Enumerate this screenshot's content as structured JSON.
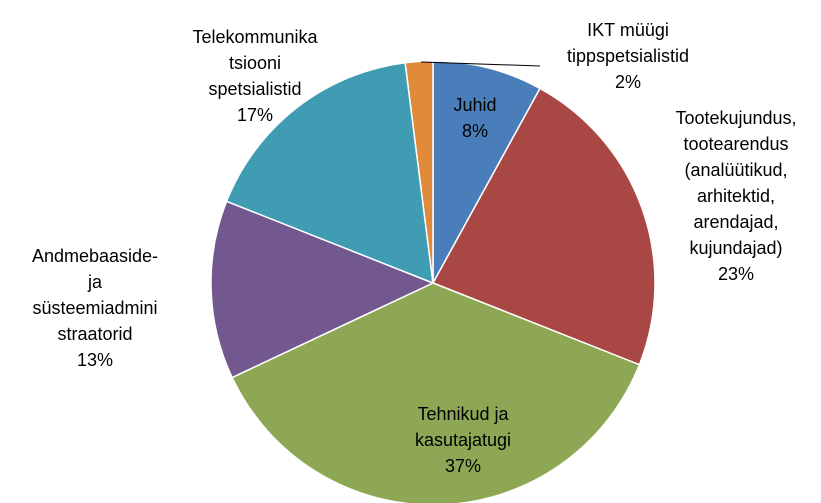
{
  "chart_data": {
    "type": "pie",
    "categories": [
      "Juhid",
      "Tootekujundus,\ntootearendus\n(analüütikud,\narhitektid,\narendajad,\nkujundajad)",
      "Tehnikud ja\nkasutajatugi",
      "Andmebaaside-\nja\nsüsteemiadmini\nstraatorid",
      "Telekommunika\ntsiooni\nspetsialistid",
      "IKT müügi\ntippspetsialistid"
    ],
    "values": [
      8,
      23,
      37,
      13,
      17,
      2
    ],
    "value_labels": [
      "8%",
      "23%",
      "37%",
      "13%",
      "17%",
      "2%"
    ],
    "colors": [
      "#4a7ebb",
      "#a94744",
      "#8ea755",
      "#72588f",
      "#3f9cb3",
      "#e08a3c"
    ]
  }
}
